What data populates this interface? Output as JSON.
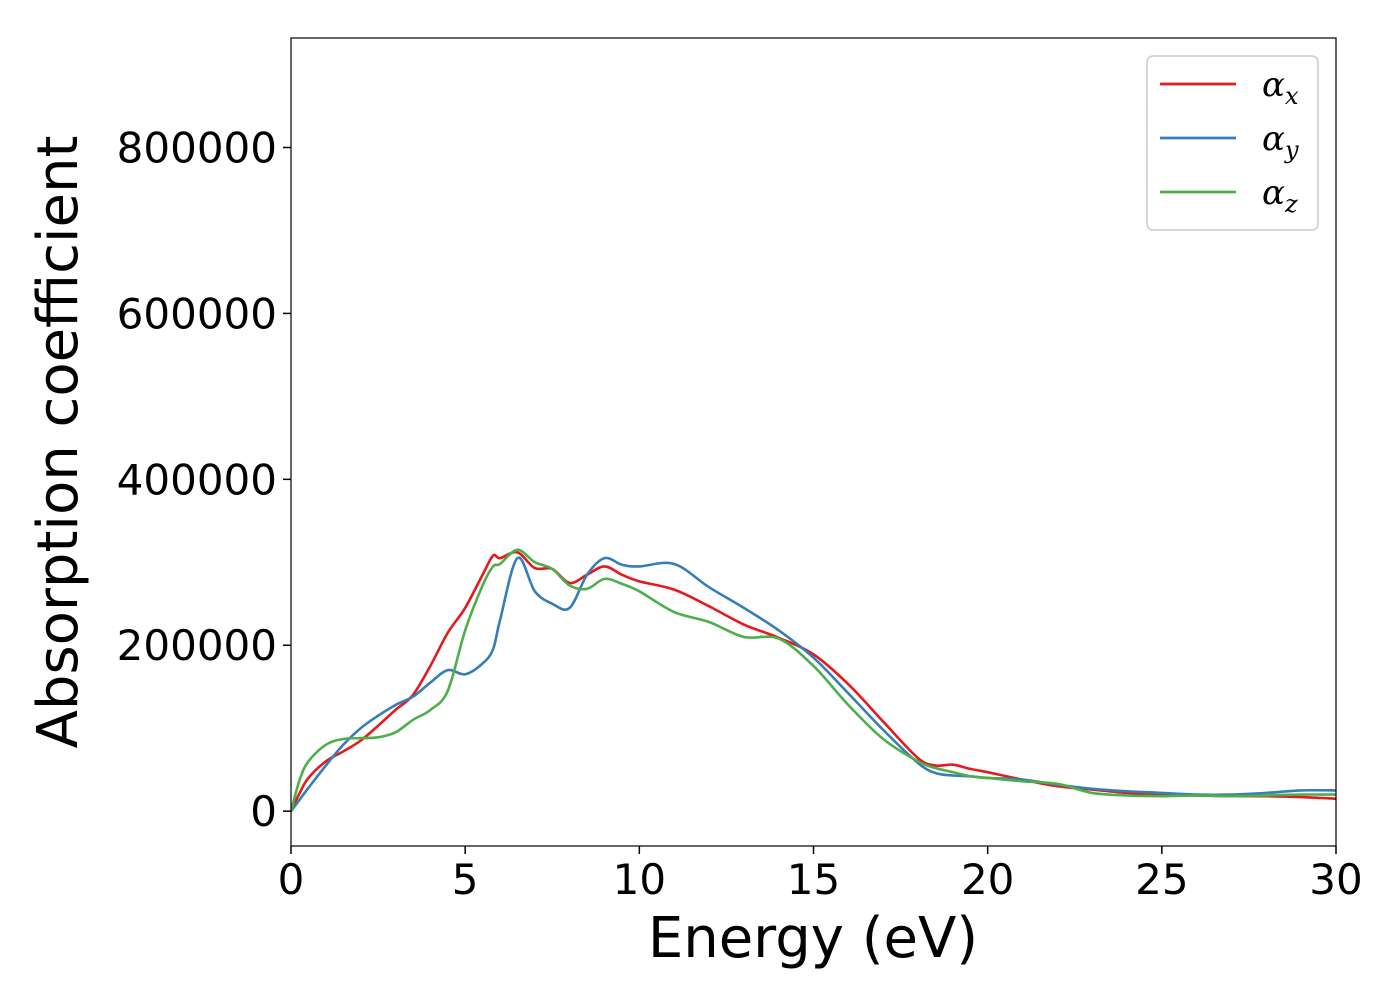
{
  "chart_data": {
    "type": "line",
    "title": "",
    "xlabel": "Energy (eV)",
    "ylabel": "Absorption coefficient",
    "xlim": [
      0,
      30
    ],
    "ylim": [
      -42000,
      932000
    ],
    "xticks": [
      0,
      5,
      10,
      15,
      20,
      25,
      30
    ],
    "yticks": [
      0,
      200000,
      400000,
      600000,
      800000
    ],
    "grid": false,
    "legend_position": "top-right",
    "x": [
      0,
      0.25,
      0.5,
      1,
      1.5,
      2,
      2.5,
      3,
      3.5,
      4,
      4.5,
      5,
      5.5,
      5.8,
      6,
      6.5,
      7,
      7.5,
      8,
      8.5,
      9,
      9.5,
      10,
      11,
      12,
      13,
      14,
      15,
      16,
      17,
      18,
      18.5,
      19,
      19.5,
      20,
      21,
      22,
      23,
      24,
      25,
      26,
      27,
      28,
      29,
      30
    ],
    "series": [
      {
        "name": "α_x",
        "symbol": "α",
        "subscript": "x",
        "color": "#e41a1c",
        "values": [
          0,
          22000,
          40000,
          60000,
          72000,
          85000,
          103000,
          122000,
          140000,
          175000,
          215000,
          245000,
          285000,
          308000,
          305000,
          312000,
          293000,
          292000,
          275000,
          285000,
          295000,
          285000,
          277000,
          267000,
          247000,
          225000,
          209000,
          189000,
          153000,
          108000,
          64000,
          55000,
          56000,
          51000,
          47000,
          38000,
          30000,
          26000,
          22000,
          20000,
          19000,
          18000,
          18000,
          17000,
          15000
        ]
      },
      {
        "name": "α_y",
        "symbol": "α",
        "subscript": "y",
        "color": "#377eb8",
        "values": [
          0,
          14000,
          28000,
          55000,
          80000,
          100000,
          115000,
          128000,
          138000,
          155000,
          170000,
          165000,
          178000,
          195000,
          230000,
          305000,
          265000,
          250000,
          245000,
          285000,
          305000,
          297000,
          295000,
          298000,
          270000,
          245000,
          218000,
          185000,
          142000,
          98000,
          58000,
          46000,
          43000,
          42000,
          40000,
          38000,
          32000,
          27000,
          24000,
          22000,
          20000,
          20000,
          22000,
          25000,
          25000
        ]
      },
      {
        "name": "α_z",
        "symbol": "α",
        "subscript": "z",
        "color": "#4daf4a",
        "values": [
          0,
          38000,
          60000,
          80000,
          87000,
          88000,
          89000,
          95000,
          110000,
          122000,
          145000,
          218000,
          272000,
          295000,
          298000,
          315000,
          300000,
          292000,
          272000,
          268000,
          280000,
          274000,
          265000,
          240000,
          228000,
          210000,
          208000,
          175000,
          128000,
          87000,
          60000,
          52000,
          47000,
          42000,
          40000,
          36000,
          33000,
          22000,
          19000,
          18000,
          19000,
          18000,
          19000,
          20000,
          20000
        ]
      }
    ]
  }
}
